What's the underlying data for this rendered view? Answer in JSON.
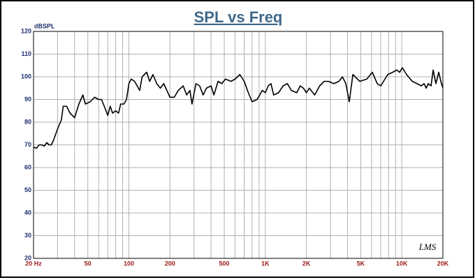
{
  "chart_data": {
    "type": "line",
    "title": "SPL vs Freq",
    "y_label": "dBSPL",
    "annotation": "LMS",
    "x_scale": "log",
    "grid": true,
    "color": "#000000",
    "xlim": [
      20,
      20000
    ],
    "ylim": [
      20,
      120
    ],
    "xticks": [
      {
        "value": 20,
        "label": "20  Hz"
      },
      50,
      100,
      200,
      500,
      {
        "value": 1000,
        "label": "1K"
      },
      {
        "value": 2000,
        "label": "2K"
      },
      {
        "value": 5000,
        "label": "5K"
      },
      {
        "value": 10000,
        "label": "10K"
      },
      {
        "value": 20000,
        "label": "20K"
      }
    ],
    "xminorticks": [
      30,
      40,
      60,
      70,
      80,
      90,
      300,
      400,
      600,
      700,
      800,
      900,
      3000,
      4000,
      6000,
      7000,
      8000,
      9000
    ],
    "yticks": [
      20,
      30,
      40,
      50,
      60,
      70,
      80,
      90,
      100,
      110,
      120
    ],
    "x": [
      20,
      21,
      22,
      23,
      24,
      25,
      26,
      27,
      28,
      30,
      32,
      33,
      35,
      37,
      40,
      43,
      46,
      48,
      52,
      56,
      60,
      63,
      66,
      70,
      73,
      76,
      80,
      84,
      87,
      92,
      96,
      100,
      104,
      110,
      115,
      120,
      125,
      135,
      142,
      150,
      160,
      170,
      180,
      200,
      215,
      230,
      250,
      265,
      280,
      290,
      310,
      330,
      350,
      370,
      400,
      420,
      450,
      480,
      510,
      560,
      600,
      650,
      700,
      750,
      800,
      870,
      950,
      1000,
      1050,
      1100,
      1150,
      1250,
      1350,
      1450,
      1550,
      1700,
      1800,
      1900,
      2000,
      2100,
      2300,
      2500,
      2700,
      2900,
      3180,
      3460,
      3670,
      3890,
      4120,
      4380,
      4920,
      5540,
      6080,
      6610,
      7010,
      7890,
      8570,
      9200,
      9640,
      10100,
      10840,
      11920,
      12940,
      13900,
      14560,
      15100,
      15640,
      16380,
      16980,
      17780,
      18660,
      19320,
      20000
    ],
    "values": [
      69,
      68.5,
      70,
      70,
      69.5,
      71,
      70,
      70,
      72,
      77,
      81,
      87,
      87,
      84,
      82,
      88,
      92,
      88,
      89,
      91,
      90,
      90,
      87,
      83,
      87,
      84,
      85,
      84,
      88,
      88,
      90,
      97,
      99,
      98,
      96,
      94,
      100,
      102,
      98,
      101,
      97,
      95,
      97,
      91,
      91,
      94,
      96,
      92,
      94,
      88,
      97,
      96,
      92,
      95,
      96,
      92,
      98,
      97,
      99,
      98,
      99,
      101,
      98,
      93,
      89,
      90,
      94,
      93,
      96,
      97,
      92,
      93,
      96,
      97,
      94,
      93,
      96,
      95,
      93,
      95,
      92,
      96,
      98,
      98,
      97,
      98,
      100,
      97,
      89,
      101,
      98,
      99,
      102,
      97,
      96,
      101,
      102,
      103,
      102,
      104,
      101,
      98,
      97,
      96,
      97,
      95,
      97,
      96,
      103,
      97,
      102,
      98,
      95
    ]
  }
}
